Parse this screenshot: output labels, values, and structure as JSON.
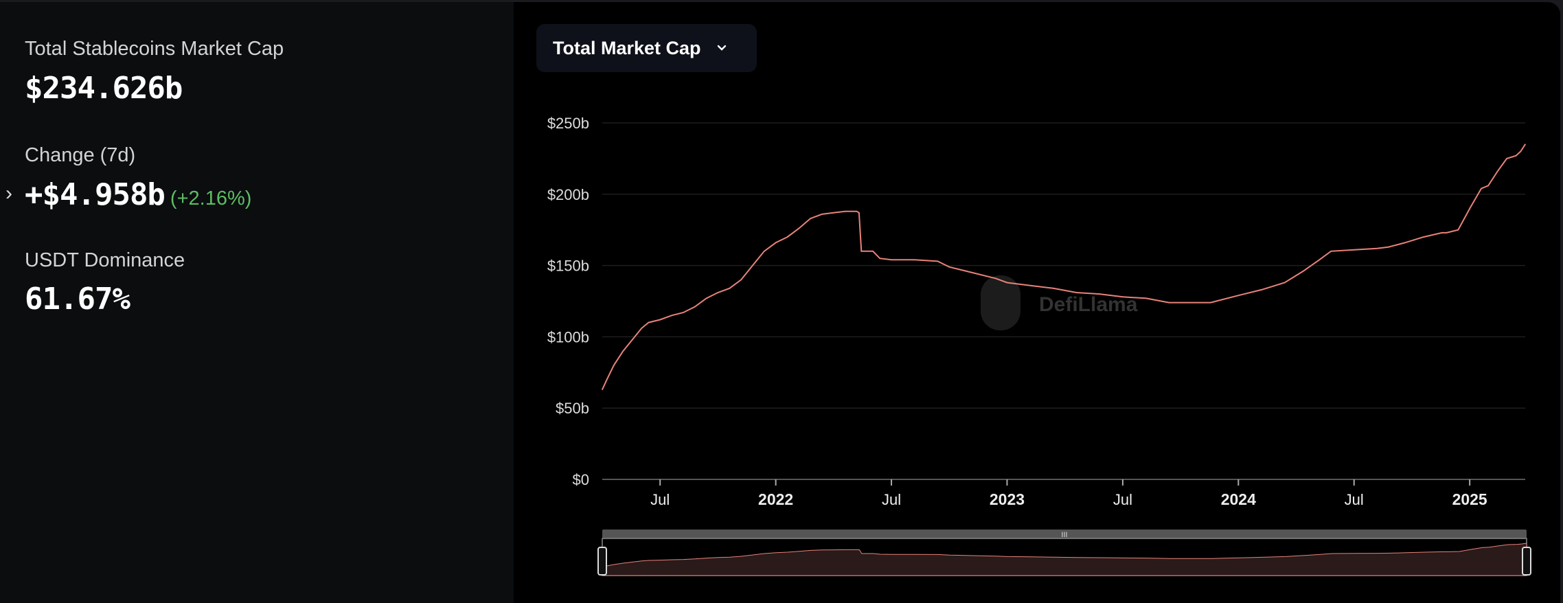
{
  "stats": {
    "total_label": "Total Stablecoins Market Cap",
    "total_value": "$234.626b",
    "change_label": "Change (7d)",
    "change_value": "+$4.958b",
    "change_pct": "(+2.16%)",
    "dominance_label": "USDT Dominance",
    "dominance_value": "61.67%"
  },
  "selector": {
    "label": "Total Market Cap"
  },
  "watermark": "DefiLlama",
  "colors": {
    "line": "#e8837a",
    "positive": "#5cbd63",
    "grid": "#1e1e1e",
    "area": "#2a1a1a"
  },
  "chart_data": {
    "type": "line",
    "title": "Total Market Cap",
    "xlabel": "",
    "ylabel": "",
    "ylim": [
      0,
      250
    ],
    "xlim": [
      2021.25,
      2025.24
    ],
    "yticks": [
      {
        "v": 0,
        "label": "$0"
      },
      {
        "v": 50,
        "label": "$50b"
      },
      {
        "v": 100,
        "label": "$100b"
      },
      {
        "v": 150,
        "label": "$150b"
      },
      {
        "v": 200,
        "label": "$200b"
      },
      {
        "v": 250,
        "label": "$250b"
      }
    ],
    "xticks": [
      {
        "v": 2021.5,
        "label": "Jul",
        "major": false
      },
      {
        "v": 2022,
        "label": "2022",
        "major": true
      },
      {
        "v": 2022.5,
        "label": "Jul",
        "major": false
      },
      {
        "v": 2023,
        "label": "2023",
        "major": true
      },
      {
        "v": 2023.5,
        "label": "Jul",
        "major": false
      },
      {
        "v": 2024,
        "label": "2024",
        "major": true
      },
      {
        "v": 2024.5,
        "label": "Jul",
        "major": false
      },
      {
        "v": 2025,
        "label": "2025",
        "major": true
      }
    ],
    "grid": true,
    "series": [
      {
        "name": "Total Market Cap ($b)",
        "x": [
          2021.25,
          2021.27,
          2021.3,
          2021.34,
          2021.38,
          2021.42,
          2021.45,
          2021.5,
          2021.55,
          2021.6,
          2021.65,
          2021.7,
          2021.75,
          2021.8,
          2021.85,
          2021.9,
          2021.95,
          2022.0,
          2022.05,
          2022.1,
          2022.15,
          2022.2,
          2022.25,
          2022.3,
          2022.35,
          2022.36,
          2022.37,
          2022.42,
          2022.45,
          2022.5,
          2022.6,
          2022.7,
          2022.75,
          2022.85,
          2022.95,
          2023.0,
          2023.1,
          2023.2,
          2023.3,
          2023.4,
          2023.5,
          2023.6,
          2023.7,
          2023.8,
          2023.88,
          2024.0,
          2024.1,
          2024.2,
          2024.28,
          2024.35,
          2024.4,
          2024.5,
          2024.6,
          2024.65,
          2024.72,
          2024.8,
          2024.88,
          2024.9,
          2024.95,
          2025.0,
          2025.05,
          2025.08,
          2025.12,
          2025.16,
          2025.2,
          2025.22,
          2025.24
        ],
        "values": [
          63,
          70,
          80,
          90,
          98,
          106,
          110,
          112,
          115,
          117,
          121,
          127,
          131,
          134,
          140,
          150,
          160,
          166,
          170,
          176,
          183,
          186,
          187,
          188,
          188,
          187,
          160,
          160,
          155,
          154,
          154,
          153,
          149,
          145,
          141,
          138,
          136,
          134,
          131,
          130,
          128,
          127,
          124,
          124,
          124,
          129,
          133,
          138,
          146,
          154,
          160,
          161,
          162,
          163,
          166,
          170,
          173,
          173,
          175,
          190,
          204,
          206,
          216,
          225,
          227,
          230,
          235
        ]
      }
    ],
    "navigator": {
      "range": [
        2021.25,
        2025.24
      ]
    }
  }
}
